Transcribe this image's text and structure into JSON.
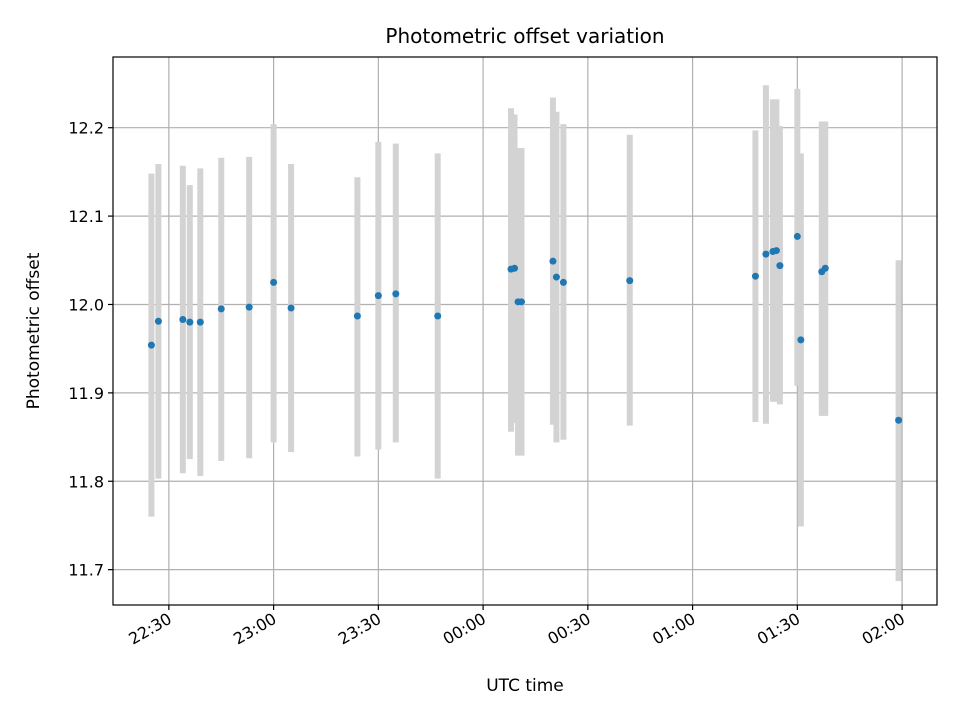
{
  "chart_data": {
    "type": "scatter",
    "title": "Photometric offset variation",
    "xlabel": "UTC time",
    "ylabel": "Photometric offset",
    "xlim": [
      "22:14",
      "02:10"
    ],
    "ylim": [
      11.66,
      12.28
    ],
    "x_ticks": [
      "22:30",
      "23:00",
      "23:30",
      "00:00",
      "00:30",
      "01:00",
      "01:30",
      "02:00"
    ],
    "y_ticks": [
      11.7,
      11.8,
      11.9,
      12.0,
      12.1,
      12.2
    ],
    "y_tick_labels": [
      "11.7",
      "11.8",
      "11.9",
      "12.0",
      "12.1",
      "12.2"
    ],
    "grid": true,
    "colors": {
      "point": "#1f77b4",
      "errorbar": "#d3d3d3",
      "grid": "#b0b0b0"
    },
    "points": [
      {
        "x": "22:25",
        "y": 11.954,
        "ylow": 11.76,
        "yhigh": 12.148
      },
      {
        "x": "22:27",
        "y": 11.981,
        "ylow": 11.803,
        "yhigh": 12.159
      },
      {
        "x": "22:34",
        "y": 11.983,
        "ylow": 11.809,
        "yhigh": 12.157
      },
      {
        "x": "22:36",
        "y": 11.98,
        "ylow": 11.825,
        "yhigh": 12.135
      },
      {
        "x": "22:39",
        "y": 11.98,
        "ylow": 11.806,
        "yhigh": 12.154
      },
      {
        "x": "22:45",
        "y": 11.995,
        "ylow": 11.823,
        "yhigh": 12.166
      },
      {
        "x": "22:53",
        "y": 11.997,
        "ylow": 11.826,
        "yhigh": 12.167
      },
      {
        "x": "23:00",
        "y": 12.025,
        "ylow": 11.844,
        "yhigh": 12.204
      },
      {
        "x": "23:05",
        "y": 11.996,
        "ylow": 11.833,
        "yhigh": 12.159
      },
      {
        "x": "23:24",
        "y": 11.987,
        "ylow": 11.828,
        "yhigh": 12.144
      },
      {
        "x": "23:30",
        "y": 12.01,
        "ylow": 11.836,
        "yhigh": 12.184
      },
      {
        "x": "23:35",
        "y": 12.012,
        "ylow": 11.844,
        "yhigh": 12.182
      },
      {
        "x": "23:47",
        "y": 11.987,
        "ylow": 11.803,
        "yhigh": 12.171
      },
      {
        "x": "00:08",
        "y": 12.04,
        "ylow": 11.856,
        "yhigh": 12.222
      },
      {
        "x": "00:09",
        "y": 12.041,
        "ylow": 11.866,
        "yhigh": 12.215
      },
      {
        "x": "00:10",
        "y": 12.003,
        "ylow": 11.829,
        "yhigh": 12.177
      },
      {
        "x": "00:11",
        "y": 12.003,
        "ylow": 11.829,
        "yhigh": 12.177
      },
      {
        "x": "00:20",
        "y": 12.049,
        "ylow": 11.864,
        "yhigh": 12.234
      },
      {
        "x": "00:21",
        "y": 12.031,
        "ylow": 11.844,
        "yhigh": 12.218
      },
      {
        "x": "00:23",
        "y": 12.025,
        "ylow": 11.847,
        "yhigh": 12.204
      },
      {
        "x": "00:42",
        "y": 12.027,
        "ylow": 11.863,
        "yhigh": 12.192
      },
      {
        "x": "01:18",
        "y": 12.032,
        "ylow": 11.867,
        "yhigh": 12.197
      },
      {
        "x": "01:21",
        "y": 12.057,
        "ylow": 11.865,
        "yhigh": 12.248
      },
      {
        "x": "01:23",
        "y": 12.06,
        "ylow": 11.89,
        "yhigh": 12.232
      },
      {
        "x": "01:24",
        "y": 12.061,
        "ylow": 11.89,
        "yhigh": 12.232
      },
      {
        "x": "01:25",
        "y": 12.044,
        "ylow": 11.887,
        "yhigh": 12.202
      },
      {
        "x": "01:30",
        "y": 12.077,
        "ylow": 11.908,
        "yhigh": 12.244
      },
      {
        "x": "01:31",
        "y": 11.96,
        "ylow": 11.749,
        "yhigh": 12.171
      },
      {
        "x": "01:37",
        "y": 12.037,
        "ylow": 11.874,
        "yhigh": 12.207
      },
      {
        "x": "01:38",
        "y": 12.041,
        "ylow": 11.874,
        "yhigh": 12.207
      },
      {
        "x": "01:59",
        "y": 11.869,
        "ylow": 11.687,
        "yhigh": 12.05
      }
    ]
  }
}
